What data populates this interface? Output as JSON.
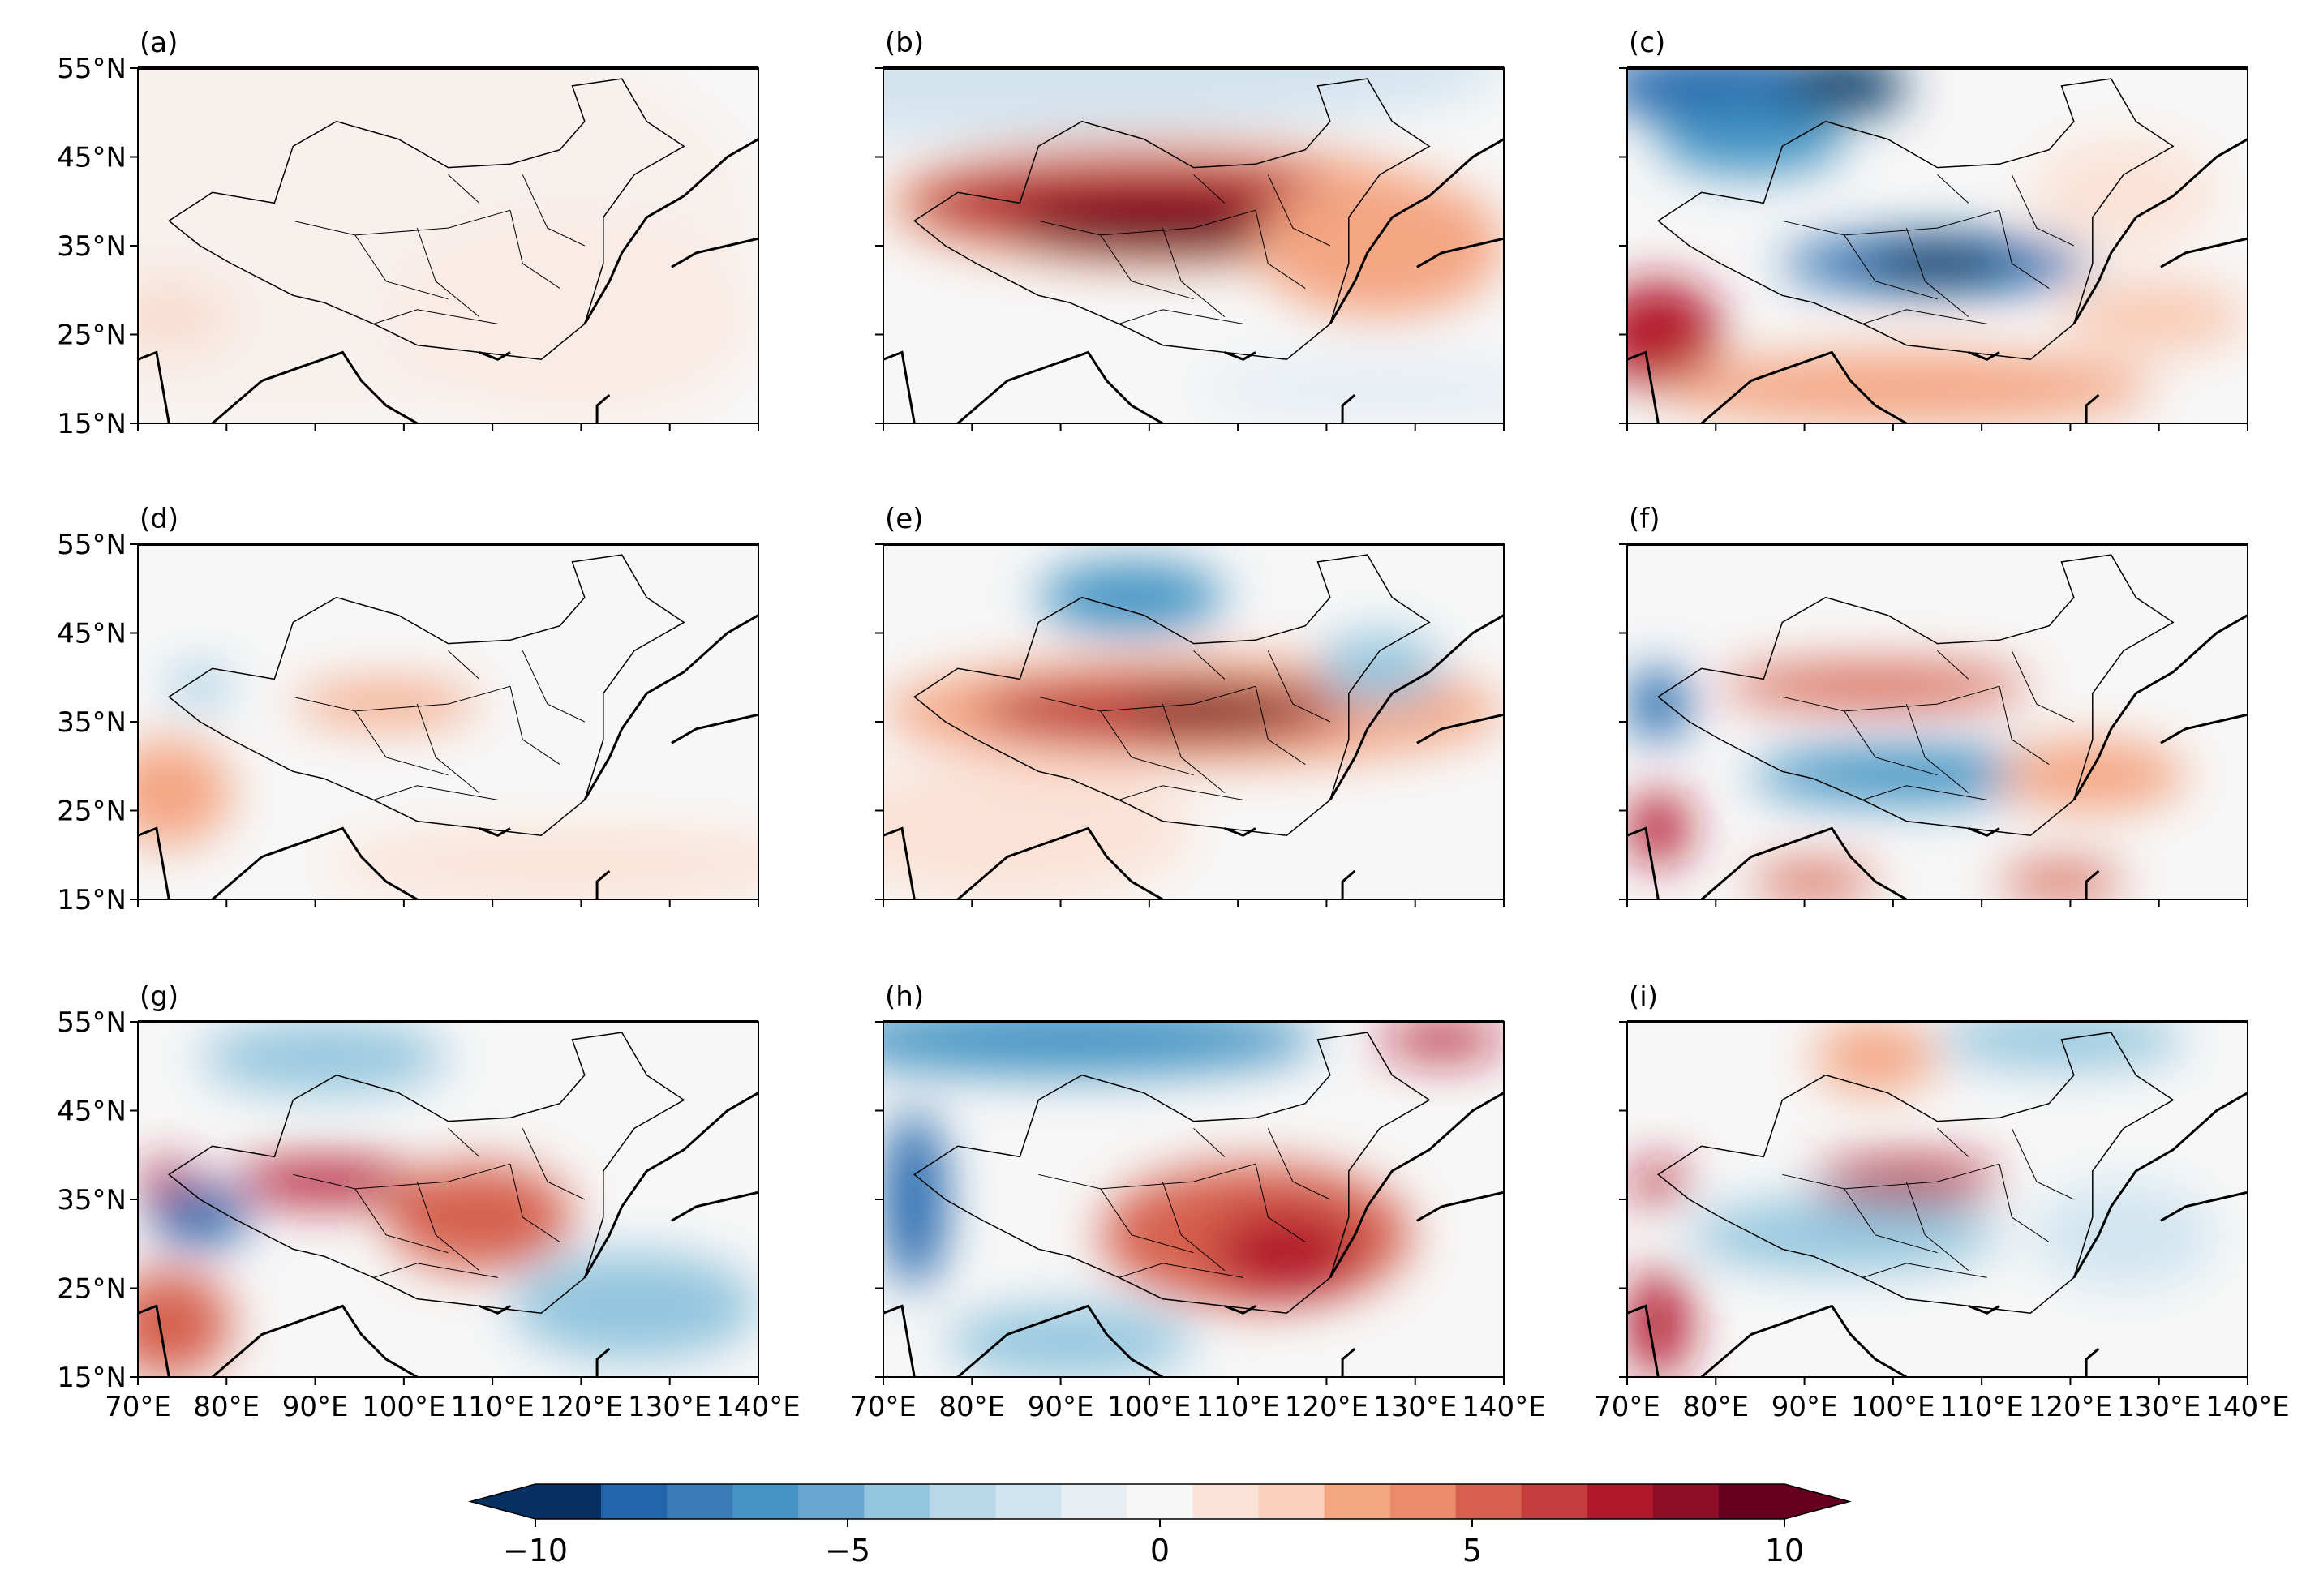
{
  "figure": {
    "panels": [
      {
        "label": "(a)",
        "row": 0,
        "col": 0,
        "blobs": [
          [
            0.2,
            0.4,
            0.8,
            0.6,
            "#f7f0ec"
          ],
          [
            0.7,
            0.7,
            0.3,
            0.3,
            "#f9ebe5"
          ],
          [
            0.05,
            0.7,
            0.1,
            0.1,
            "#f9dcce"
          ]
        ]
      },
      {
        "label": "(b)",
        "row": 0,
        "col": 1,
        "blobs": [
          [
            0.1,
            0.0,
            0.9,
            0.2,
            "#d4e4ef"
          ],
          [
            0.45,
            0.38,
            0.45,
            0.18,
            "#f6b394"
          ],
          [
            0.42,
            0.38,
            0.38,
            0.12,
            "#b2182b"
          ],
          [
            0.45,
            0.45,
            0.25,
            0.08,
            "#67001f"
          ],
          [
            0.8,
            0.5,
            0.2,
            0.2,
            "#f4a582"
          ],
          [
            0.8,
            0.9,
            0.3,
            0.1,
            "#e7eef4"
          ]
        ]
      },
      {
        "label": "(c)",
        "row": 0,
        "col": 2,
        "blobs": [
          [
            0.15,
            0.05,
            0.2,
            0.1,
            "#2166ac"
          ],
          [
            0.35,
            0.05,
            0.1,
            0.08,
            "#053061"
          ],
          [
            0.2,
            0.2,
            0.15,
            0.1,
            "#4393c3"
          ],
          [
            0.5,
            0.55,
            0.25,
            0.08,
            "#2166ac"
          ],
          [
            0.5,
            0.55,
            0.12,
            0.06,
            "#053061"
          ],
          [
            0.05,
            0.75,
            0.1,
            0.15,
            "#b2182b"
          ],
          [
            0.45,
            0.9,
            0.4,
            0.1,
            "#f4a582"
          ],
          [
            0.85,
            0.7,
            0.15,
            0.1,
            "#f9cbb4"
          ],
          [
            0.8,
            0.35,
            0.15,
            0.15,
            "#fbe2d6"
          ]
        ]
      },
      {
        "label": "(d)",
        "row": 1,
        "col": 0,
        "blobs": [
          [
            0.4,
            0.45,
            0.15,
            0.06,
            "#f4a582"
          ],
          [
            0.05,
            0.7,
            0.1,
            0.15,
            "#f4a582"
          ],
          [
            0.1,
            0.4,
            0.05,
            0.05,
            "#92c5de"
          ],
          [
            0.7,
            0.9,
            0.4,
            0.1,
            "#fbe2d6"
          ]
        ]
      },
      {
        "label": "(e)",
        "row": 1,
        "col": 1,
        "blobs": [
          [
            0.4,
            0.15,
            0.15,
            0.1,
            "#4393c3"
          ],
          [
            0.5,
            0.47,
            0.5,
            0.15,
            "#f4a582"
          ],
          [
            0.45,
            0.47,
            0.3,
            0.08,
            "#b2182b"
          ],
          [
            0.55,
            0.47,
            0.15,
            0.06,
            "#67001f"
          ],
          [
            0.2,
            0.8,
            0.3,
            0.2,
            "#fbe2d6"
          ],
          [
            0.8,
            0.35,
            0.1,
            0.1,
            "#92c5de"
          ]
        ]
      },
      {
        "label": "(f)",
        "row": 1,
        "col": 2,
        "blobs": [
          [
            0.05,
            0.45,
            0.05,
            0.1,
            "#2166ac"
          ],
          [
            0.4,
            0.4,
            0.25,
            0.06,
            "#d6604d"
          ],
          [
            0.45,
            0.65,
            0.25,
            0.08,
            "#4393c3"
          ],
          [
            0.05,
            0.8,
            0.05,
            0.1,
            "#b2182b"
          ],
          [
            0.3,
            0.95,
            0.1,
            0.05,
            "#d6604d"
          ],
          [
            0.7,
            0.95,
            0.1,
            0.05,
            "#d6604d"
          ],
          [
            0.75,
            0.65,
            0.15,
            0.1,
            "#f4a582"
          ]
        ]
      },
      {
        "label": "(g)",
        "row": 2,
        "col": 0,
        "blobs": [
          [
            0.3,
            0.1,
            0.2,
            0.1,
            "#92c5de"
          ],
          [
            0.3,
            0.45,
            0.15,
            0.06,
            "#b2182b"
          ],
          [
            0.05,
            0.45,
            0.05,
            0.05,
            "#b2182b"
          ],
          [
            0.1,
            0.55,
            0.08,
            0.08,
            "#2166ac"
          ],
          [
            0.55,
            0.55,
            0.15,
            0.15,
            "#d6604d"
          ],
          [
            0.05,
            0.85,
            0.1,
            0.15,
            "#d6604d"
          ],
          [
            0.8,
            0.8,
            0.2,
            0.15,
            "#92c5de"
          ]
        ]
      },
      {
        "label": "(h)",
        "row": 2,
        "col": 1,
        "blobs": [
          [
            0.3,
            0.05,
            0.4,
            0.1,
            "#4393c3"
          ],
          [
            0.05,
            0.5,
            0.05,
            0.25,
            "#2166ac"
          ],
          [
            0.6,
            0.6,
            0.25,
            0.2,
            "#d6604d"
          ],
          [
            0.65,
            0.65,
            0.12,
            0.12,
            "#b2182b"
          ],
          [
            0.9,
            0.05,
            0.1,
            0.05,
            "#b2182b"
          ],
          [
            0.3,
            0.9,
            0.2,
            0.1,
            "#92c5de"
          ]
        ]
      },
      {
        "label": "(i)",
        "row": 2,
        "col": 2,
        "blobs": [
          [
            0.45,
            0.45,
            0.15,
            0.06,
            "#b2182b"
          ],
          [
            0.05,
            0.45,
            0.05,
            0.05,
            "#b2182b"
          ],
          [
            0.05,
            0.85,
            0.05,
            0.15,
            "#b2182b"
          ],
          [
            0.4,
            0.1,
            0.1,
            0.1,
            "#f4a582"
          ],
          [
            0.7,
            0.05,
            0.2,
            0.08,
            "#92c5de"
          ],
          [
            0.35,
            0.6,
            0.25,
            0.1,
            "#92c5de"
          ],
          [
            0.8,
            0.6,
            0.15,
            0.15,
            "#d1e5f0"
          ]
        ]
      }
    ],
    "y_ticks": [
      "55°N",
      "45°N",
      "35°N",
      "25°N",
      "15°N"
    ],
    "x_ticks": [
      "70°E",
      "80°E",
      "90°E",
      "100°E",
      "110°E",
      "120°E",
      "130°E",
      "140°E"
    ],
    "colorbar": {
      "ticks": [
        {
          "label": "−10",
          "value": -10
        },
        {
          "label": "−5",
          "value": -5
        },
        {
          "label": "0",
          "value": 0
        },
        {
          "label": "5",
          "value": 5
        },
        {
          "label": "10",
          "value": 10
        }
      ],
      "colors": [
        "#053061",
        "#2166ac",
        "#3a7ab8",
        "#4393c3",
        "#6aa7d0",
        "#92c5de",
        "#b8d8e9",
        "#d1e5f0",
        "#e7eef4",
        "#f7f7f7",
        "#fbe2d6",
        "#fbd0bd",
        "#f4a582",
        "#ea8c6b",
        "#d6604d",
        "#c43c3c",
        "#b2182b",
        "#8c0d25",
        "#67001f"
      ]
    }
  }
}
